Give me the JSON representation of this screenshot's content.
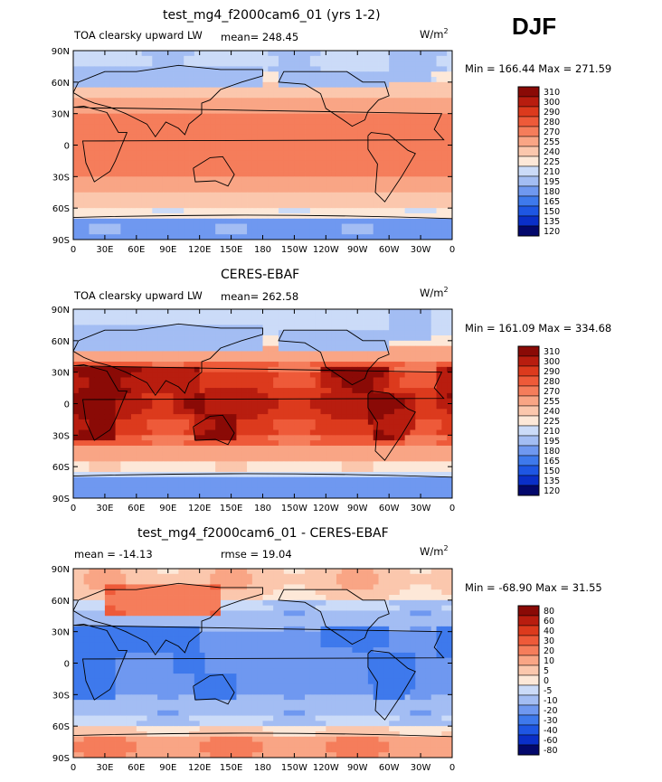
{
  "season": "DJF",
  "units": "W/m",
  "units_exp": "2",
  "colors": {
    "palette_main": [
      "#03086c",
      "#0a2fc8",
      "#1e56e3",
      "#3e79ec",
      "#6f98f0",
      "#a3bdf3",
      "#cbdbf8",
      "#fde8d8",
      "#fbc7ad",
      "#f9a585",
      "#f57d5b",
      "#ee5a39",
      "#dc3a1d",
      "#b81d0f",
      "#8a0a06"
    ],
    "palette_diff": [
      "#03086c",
      "#0a2fc8",
      "#1e56e3",
      "#3e79ec",
      "#6f98f0",
      "#a3bdf3",
      "#cbdbf8",
      "#fde8d8",
      "#fbc7ad",
      "#f9a585",
      "#f57d5b",
      "#ee5a39",
      "#dc3a1d",
      "#b81d0f",
      "#8a0a06"
    ]
  },
  "chart_data": [
    {
      "type": "heatmap",
      "title": "test_mg4_f2000cam6_01 (yrs 1-2)",
      "left_label": "TOA clearsky upward LW",
      "mean_label": "mean= 248.45",
      "mean": 248.45,
      "min_max_label": "Min = 166.44 Max = 271.59",
      "min": 166.44,
      "max": 271.59,
      "x_ticks": [
        "0",
        "30E",
        "60E",
        "90E",
        "120E",
        "150E",
        "180",
        "150W",
        "120W",
        "90W",
        "60W",
        "30W",
        "0"
      ],
      "y_ticks": [
        "90N",
        "60N",
        "30N",
        "0",
        "30S",
        "60S",
        "90S"
      ],
      "colorbar_labels": [
        "310",
        "300",
        "290",
        "280",
        "270",
        "255",
        "240",
        "225",
        "210",
        "195",
        "180",
        "165",
        "150",
        "135",
        "120"
      ],
      "field": "model"
    },
    {
      "type": "heatmap",
      "title": "CERES-EBAF",
      "left_label": "TOA clearsky upward LW",
      "mean_label": "mean= 262.58",
      "mean": 262.58,
      "min_max_label": "Min = 161.09 Max = 334.68",
      "min": 161.09,
      "max": 334.68,
      "x_ticks": [
        "0",
        "30E",
        "60E",
        "90E",
        "120E",
        "150E",
        "180",
        "150W",
        "120W",
        "90W",
        "60W",
        "30W",
        "0"
      ],
      "y_ticks": [
        "90N",
        "60N",
        "30N",
        "0",
        "30S",
        "60S",
        "90S"
      ],
      "colorbar_labels": [
        "310",
        "300",
        "290",
        "280",
        "270",
        "255",
        "240",
        "225",
        "210",
        "195",
        "180",
        "165",
        "150",
        "135",
        "120"
      ],
      "field": "obs"
    },
    {
      "type": "heatmap",
      "title": "test_mg4_f2000cam6_01 - CERES-EBAF",
      "left_label": "mean = -14.13",
      "mean_label": "rmse =  19.04",
      "mean": -14.13,
      "rmse": 19.04,
      "min_max_label": "Min = -68.90 Max =  31.55",
      "min": -68.9,
      "max": 31.55,
      "x_ticks": [
        "0",
        "30E",
        "60E",
        "90E",
        "120E",
        "150E",
        "180",
        "150W",
        "120W",
        "90W",
        "60W",
        "30W",
        "0"
      ],
      "y_ticks": [
        "90N",
        "60N",
        "30N",
        "0",
        "30S",
        "60S",
        "90S"
      ],
      "colorbar_labels": [
        "80",
        "60",
        "40",
        "30",
        "20",
        "10",
        "5",
        "0",
        "-5",
        "-10",
        "-20",
        "-30",
        "-40",
        "-60",
        "-80"
      ],
      "field": "diff"
    }
  ]
}
